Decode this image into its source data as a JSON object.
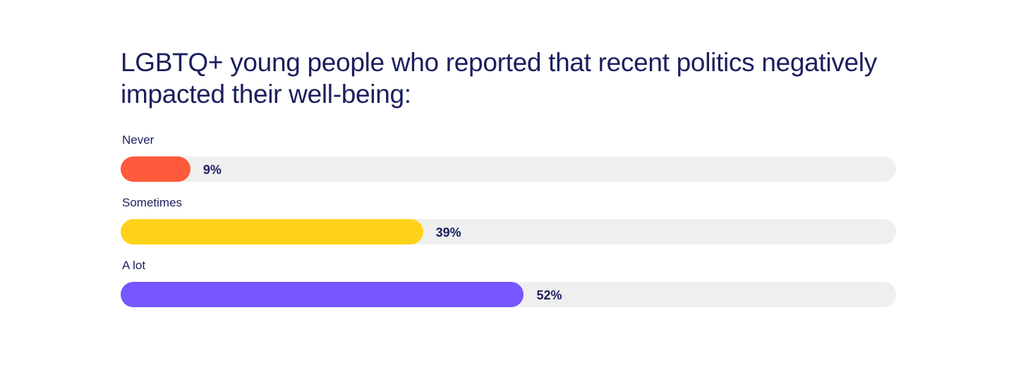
{
  "chart_data": {
    "type": "bar",
    "orientation": "horizontal",
    "title": "LGBTQ+ young people who reported that recent politics negatively impacted their well-being:",
    "categories": [
      "Never",
      "Sometimes",
      "A lot"
    ],
    "values": [
      9,
      39,
      52
    ],
    "value_labels": [
      "9%",
      "39%",
      "52%"
    ],
    "colors": [
      "#ff5a3c",
      "#ffd21a",
      "#7657ff"
    ],
    "track_color": "#efefef",
    "xlim": [
      0,
      100
    ],
    "grid": false,
    "legend": "none"
  }
}
